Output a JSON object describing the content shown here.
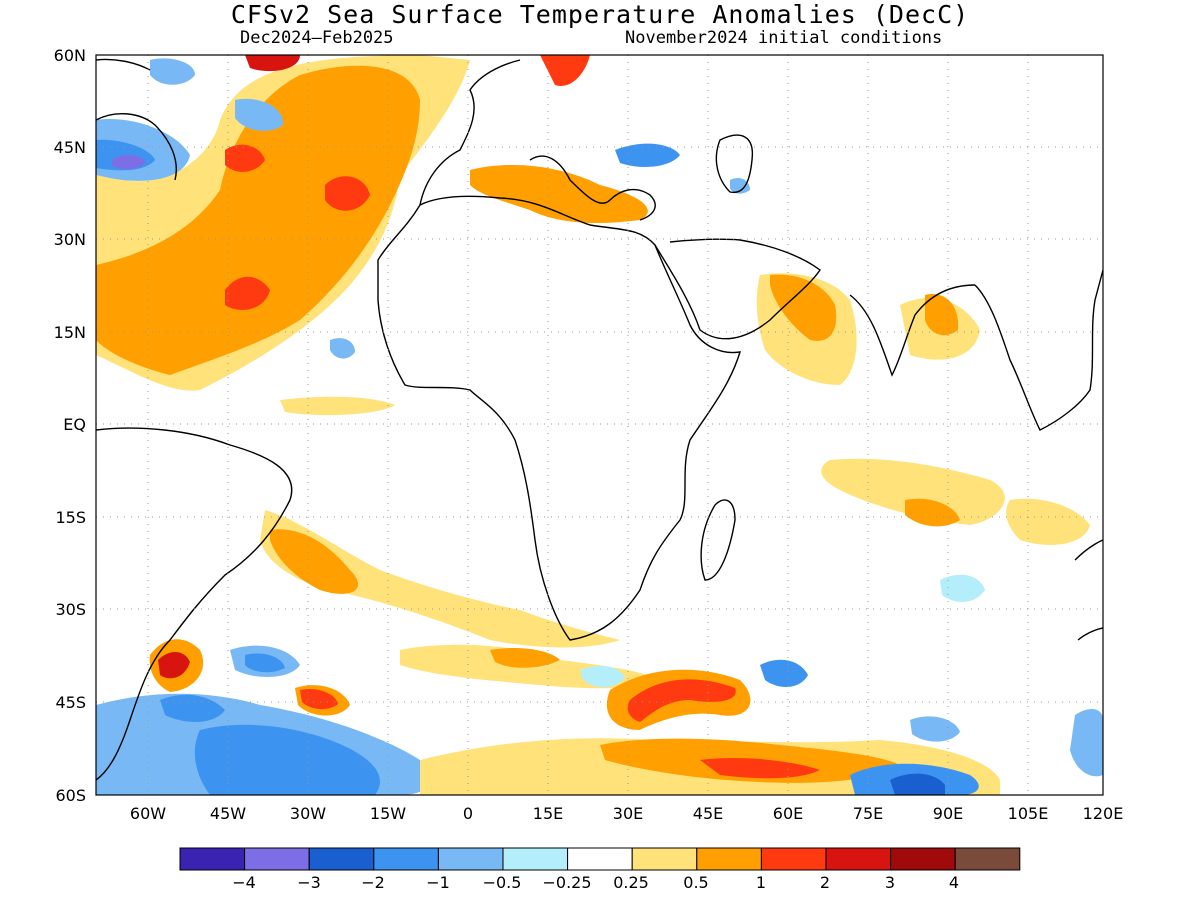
{
  "title": "CFSv2 Sea Surface Temperature Anomalies (DecC)",
  "period": "Dec2024–Feb2025",
  "init": "November2024 initial conditions",
  "lat_labels": [
    "60N",
    "45N",
    "30N",
    "15N",
    "EQ",
    "15S",
    "30S",
    "45S",
    "60S"
  ],
  "lon_labels": [
    "60W",
    "45W",
    "30W",
    "15W",
    "0",
    "15E",
    "30E",
    "45E",
    "60E",
    "75E",
    "90E",
    "105E",
    "120E"
  ],
  "colorbar": {
    "colors": [
      "#3a23b0",
      "#7e6ee6",
      "#1a5fd0",
      "#3d94f0",
      "#78b9f5",
      "#b3eefa",
      "#ffffff",
      "#ffe27a",
      "#ff9f00",
      "#ff3a10",
      "#d81410",
      "#a00a0a",
      "#7a4a3a"
    ],
    "labels": [
      "−4",
      "−3",
      "−2",
      "−1",
      "−0.5",
      "−0.25",
      "0.25",
      "0.5",
      "1",
      "2",
      "3",
      "4"
    ]
  }
}
